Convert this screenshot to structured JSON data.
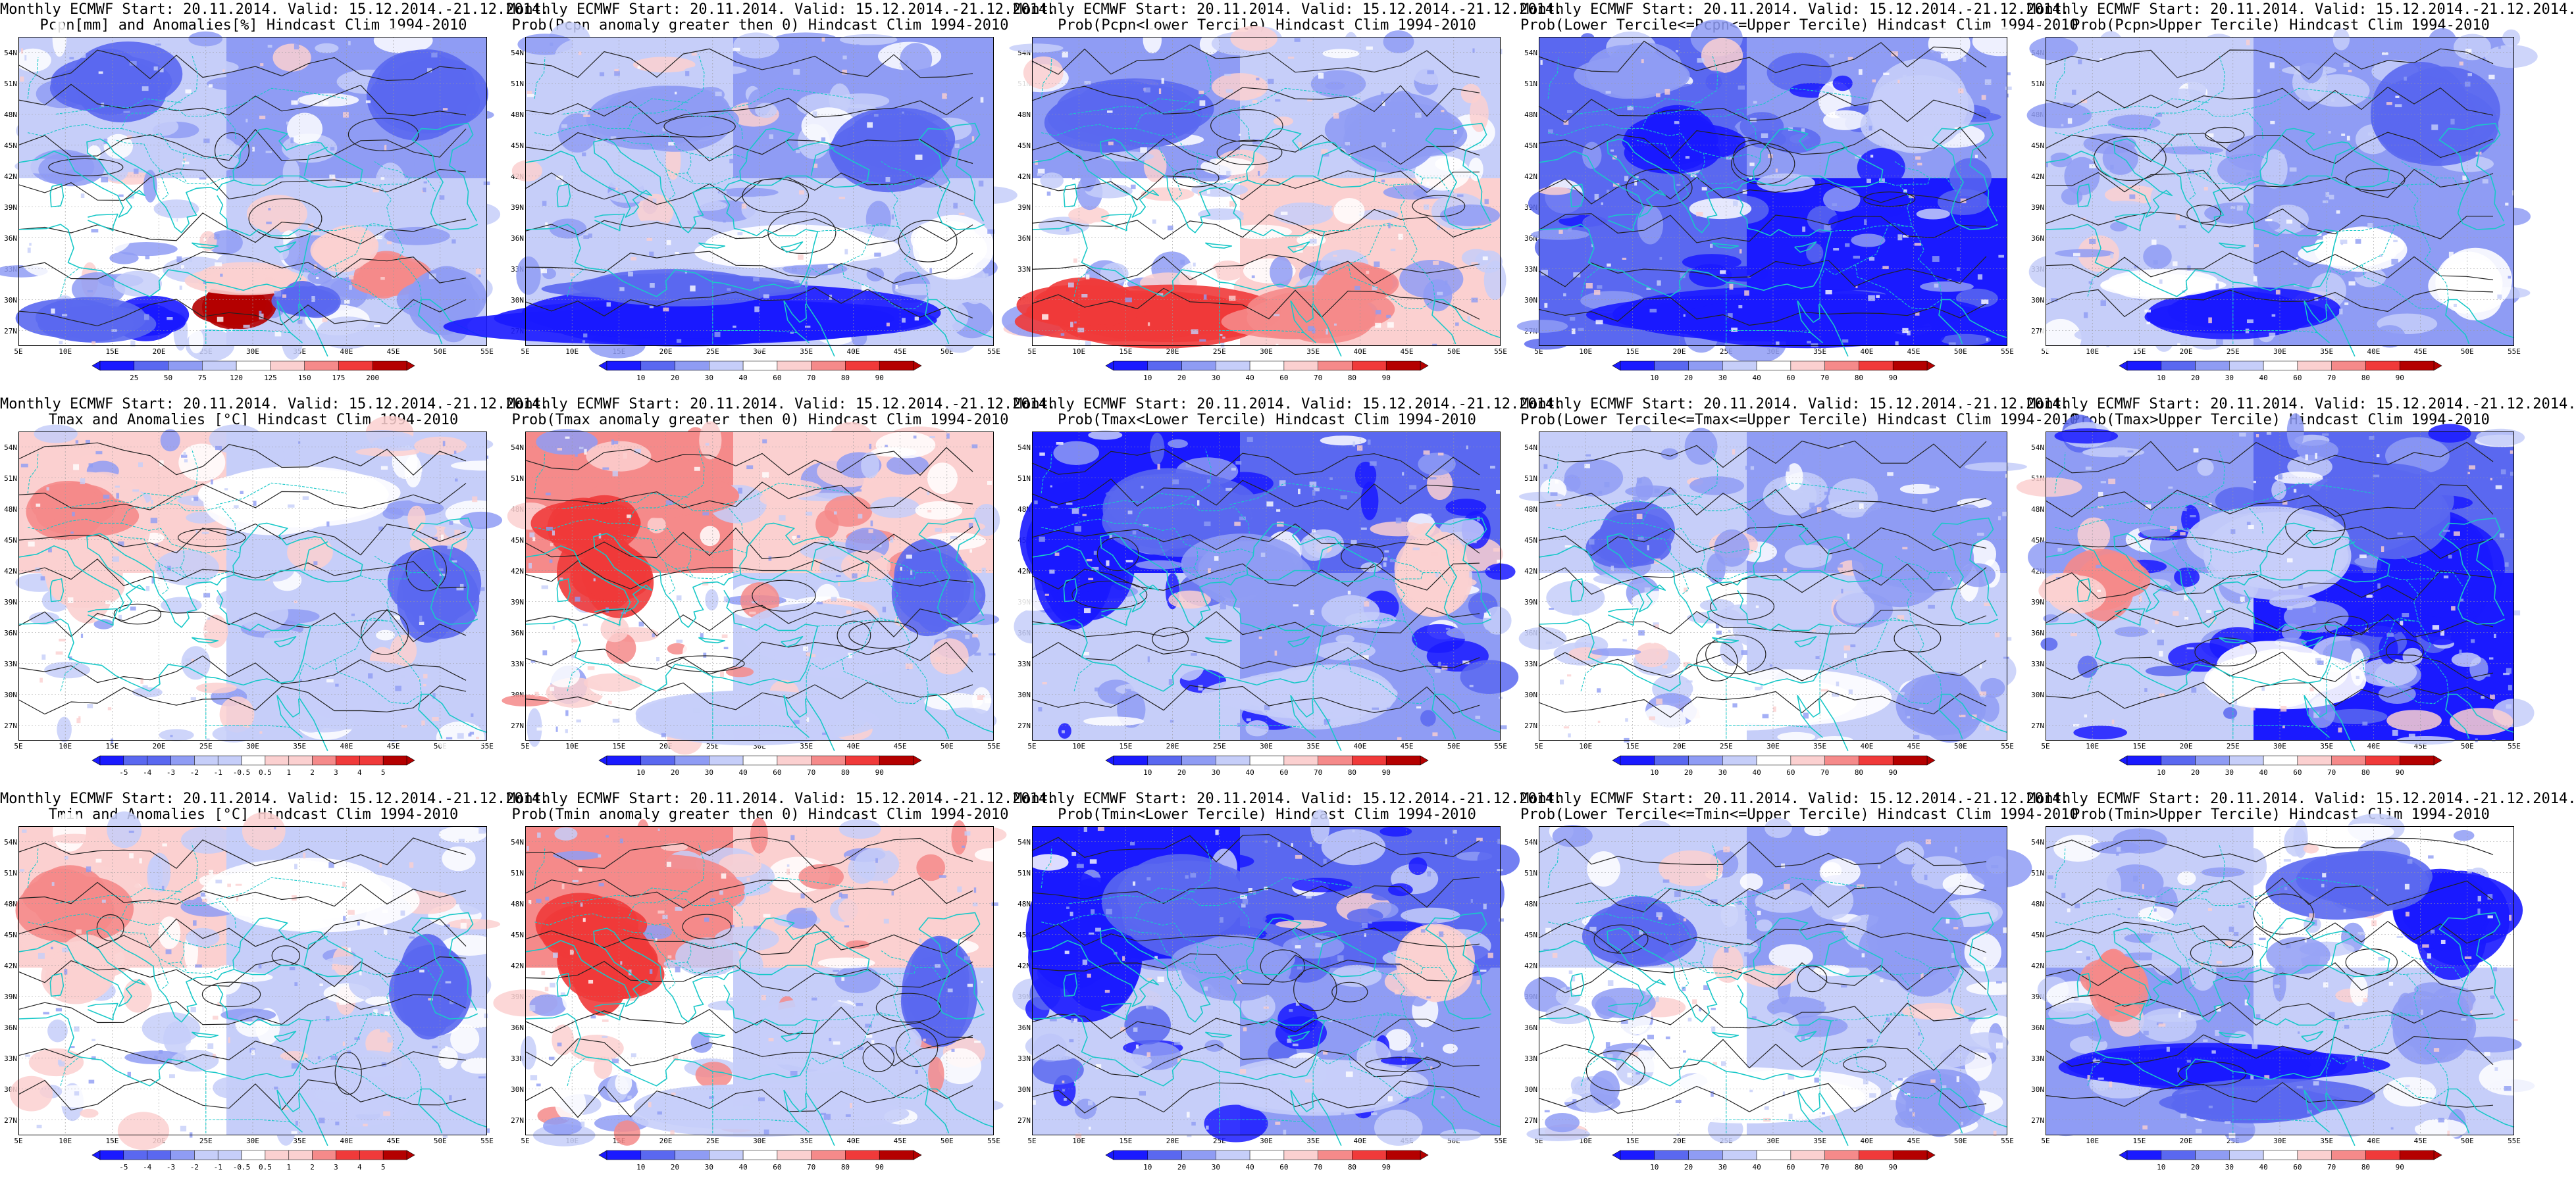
{
  "map_data": {
    "lat_ticks": [
      "54N",
      "51N",
      "48N",
      "45N",
      "42N",
      "39N",
      "36N",
      "33N",
      "30N",
      "27N"
    ],
    "lon_ticks": [
      "5E",
      "10E",
      "15E",
      "20E",
      "25E",
      "30E",
      "35E",
      "40E",
      "45E",
      "50E",
      "55E"
    ],
    "colorbars": {
      "pcpn": [
        "25",
        "50",
        "75",
        "120",
        "125",
        "150",
        "175",
        "200"
      ],
      "anom": [
        "-5",
        "-4",
        "-3",
        "-2",
        "-1",
        "-0.5",
        "0.5",
        "1",
        "2",
        "3",
        "4",
        "5"
      ],
      "prob": [
        "10",
        "20",
        "30",
        "40",
        "60",
        "70",
        "80",
        "90"
      ]
    },
    "palette": {
      "blue_dark": "#1a1aff",
      "blue": "#5a68f0",
      "blue_mid": "#8f9cf4",
      "blue_light": "#c6cef9",
      "white": "#ffffff",
      "pink_light": "#fbd0d0",
      "red_mid": "#f58a8a",
      "red": "#f03a3a",
      "red_dark": "#b40000",
      "coast": "#19c8c8",
      "contour": "#222222"
    },
    "panels": [
      {
        "row": 0,
        "col": 0,
        "cbar": "pcpn",
        "theme": "precip_anom",
        "title1": "Monthly ECMWF Start: 20.11.2014. Valid: 15.12.2014.-21.12.2014.",
        "title2": "Pcpn[mm] and Anomalies[%] Hindcast Clim 1994-2010"
      },
      {
        "row": 0,
        "col": 1,
        "cbar": "prob",
        "theme": "blue_heavy_south",
        "title1": "Monthly ECMWF Start: 20.11.2014. Valid: 15.12.2014.-21.12.2014.",
        "title2": "Prob(Pcpn anomaly greater then 0) Hindcast Clim 1994-2010"
      },
      {
        "row": 0,
        "col": 2,
        "cbar": "prob",
        "theme": "red_south",
        "title1": "Monthly ECMWF Start: 20.11.2014. Valid: 15.12.2014.-21.12.2014.",
        "title2": "Prob(Pcpn<Lower Tercile) Hindcast Clim 1994-2010"
      },
      {
        "row": 0,
        "col": 3,
        "cbar": "prob",
        "theme": "blue_all",
        "title1": "Monthly ECMWF Start: 20.11.2014. Valid: 15.12.2014.-21.12.2014.",
        "title2": "Prob(Lower Tercile<=Pcpn<=Upper Tercile) Hindcast Clim 1994-2010"
      },
      {
        "row": 0,
        "col": 4,
        "cbar": "prob",
        "theme": "blue_mixed",
        "title1": "Monthly ECMWF Start: 20.11.2014. Valid: 15.12.2014.-21.12.2014.",
        "title2": "Prob(Pcpn>Upper Tercile) Hindcast Clim 1994-2010"
      },
      {
        "row": 1,
        "col": 0,
        "cbar": "anom",
        "theme": "warm_west",
        "title1": "Monthly ECMWF Start: 20.11.2014. Valid: 15.12.2014.-21.12.2014.",
        "title2": "Tmax and Anomalies [°C] Hindcast Clim 1994-2010"
      },
      {
        "row": 1,
        "col": 1,
        "cbar": "prob",
        "theme": "red_west",
        "title1": "Monthly ECMWF Start: 20.11.2014. Valid: 15.12.2014.-21.12.2014.",
        "title2": "Prob(Tmax anomaly greater then 0) Hindcast Clim 1994-2010"
      },
      {
        "row": 1,
        "col": 2,
        "cbar": "prob",
        "theme": "blue_west",
        "title1": "Monthly ECMWF Start: 20.11.2014. Valid: 15.12.2014.-21.12.2014.",
        "title2": "Prob(Tmax<Lower Tercile) Hindcast Clim 1994-2010"
      },
      {
        "row": 1,
        "col": 3,
        "cbar": "prob",
        "theme": "blue_light",
        "title1": "Monthly ECMWF Start: 20.11.2014. Valid: 15.12.2014.-21.12.2014.",
        "title2": "Prob(Lower Tercile<=Tmax<=Upper Tercile) Hindcast Clim 1994-2010"
      },
      {
        "row": 1,
        "col": 4,
        "cbar": "prob",
        "theme": "blue_east",
        "title1": "Monthly ECMWF Start: 20.11.2014. Valid: 15.12.2014.-21.12.2014.",
        "title2": "Prob(Tmax>Upper Tercile) Hindcast Clim 1994-2010"
      },
      {
        "row": 2,
        "col": 0,
        "cbar": "anom",
        "theme": "warm_west",
        "title1": "Monthly ECMWF Start: 20.11.2014. Valid: 15.12.2014.-21.12.2014.",
        "title2": "Tmin and Anomalies [°C] Hindcast Clim 1994-2010"
      },
      {
        "row": 2,
        "col": 1,
        "cbar": "prob",
        "theme": "red_west",
        "title1": "Monthly ECMWF Start: 20.11.2014. Valid: 15.12.2014.-21.12.2014.",
        "title2": "Prob(Tmin anomaly greater then 0) Hindcast Clim 1994-2010"
      },
      {
        "row": 2,
        "col": 2,
        "cbar": "prob",
        "theme": "blue_west",
        "title1": "Monthly ECMWF Start: 20.11.2014. Valid: 15.12.2014.-21.12.2014.",
        "title2": "Prob(Tmin<Lower Tercile) Hindcast Clim 1994-2010"
      },
      {
        "row": 2,
        "col": 3,
        "cbar": "prob",
        "theme": "blue_light",
        "title1": "Monthly ECMWF Start: 20.11.2014. Valid: 15.12.2014.-21.12.2014.",
        "title2": "Prob(Lower Tercile<=Tmin<=Upper Tercile) Hindcast Clim 1994-2010"
      },
      {
        "row": 2,
        "col": 4,
        "cbar": "prob",
        "theme": "blue_south_band",
        "title1": "Monthly ECMWF Start: 20.11.2014. Valid: 15.12.2014.-21.12.2014.",
        "title2": "Prob(Tmin>Upper Tercile) Hindcast Clim 1994-2010"
      }
    ]
  }
}
